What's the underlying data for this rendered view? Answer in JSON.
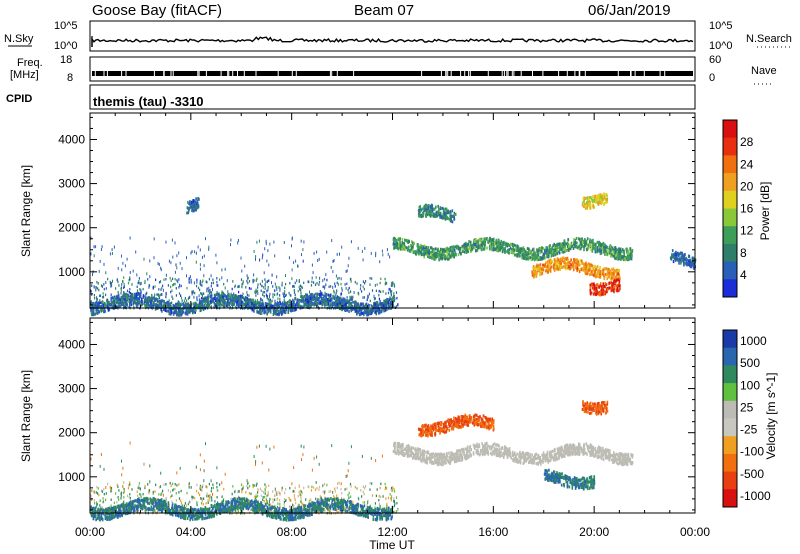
{
  "header": {
    "station": "Goose Bay (fitACF)",
    "beam": "Beam 07",
    "date": "06/Jan/2019"
  },
  "nsky_panel": {
    "left_label": "N.Sky",
    "left_ticks": [
      "10^5",
      "10^0"
    ],
    "right_label": "N.Search",
    "right_ticks": [
      "10^5",
      "10^0"
    ]
  },
  "freq_panel": {
    "left_label_1": "Freq.",
    "left_label_2": "[MHz]",
    "left_ticks": [
      "18",
      "8"
    ],
    "right_label": "Nave",
    "right_ticks": [
      "60",
      "0"
    ]
  },
  "cpid_panel": {
    "label": "CPID",
    "value": "themis (tau) -3310"
  },
  "colors": {
    "power_scale": [
      "#1a2dd8",
      "#2a5fb8",
      "#2f7e6a",
      "#3d9e5a",
      "#8ac83a",
      "#e0d020",
      "#f0a020",
      "#f07010",
      "#e83010",
      "#d81010"
    ],
    "velocity_scale": [
      "#1a3aa8",
      "#2a66b0",
      "#2e8a5e",
      "#60c040",
      "#bcbcb4",
      "#c8c8c0",
      "#f0a020",
      "#f07010",
      "#e84010",
      "#d81010"
    ]
  },
  "chart_data": [
    {
      "type": "heatmap",
      "panel": "power",
      "xlabel": "",
      "ylabel": "Slant Range [km]",
      "ylim": [
        180,
        4600
      ],
      "y_ticks": [
        "1000",
        "2000",
        "3000",
        "4000"
      ],
      "colorbar_label": "Power [dB]",
      "colorbar_ticks": [
        "4",
        "8",
        "12",
        "16",
        "20",
        "24",
        "28"
      ],
      "colorbar_range": [
        0,
        32
      ],
      "features": [
        {
          "t_start": 12.0,
          "t_end": 21.5,
          "range_km": 1550,
          "value_db": 10
        },
        {
          "t_start": 17.5,
          "t_end": 21.0,
          "range_km": 1100,
          "value_db": 22
        },
        {
          "t_start": 19.8,
          "t_end": 21.0,
          "range_km": 750,
          "value_db": 28
        },
        {
          "t_start": 19.5,
          "t_end": 20.5,
          "range_km": 2700,
          "value_db": 18
        },
        {
          "t_start": 13.0,
          "t_end": 14.5,
          "range_km": 2300,
          "value_db": 8
        },
        {
          "t_start": 0.0,
          "t_end": 12.0,
          "range_km": 300,
          "value_db": 6
        },
        {
          "t_start": 3.8,
          "t_end": 4.3,
          "range_km": 2500,
          "value_db": 6
        },
        {
          "t_start": 23.0,
          "t_end": 24.0,
          "range_km": 1300,
          "value_db": 6
        }
      ]
    },
    {
      "type": "heatmap",
      "panel": "velocity",
      "xlabel": "Time UT",
      "ylabel": "Slant Range [km]",
      "ylim": [
        180,
        4600
      ],
      "y_ticks": [
        "1000",
        "2000",
        "3000",
        "4000"
      ],
      "x_ticks": [
        "00:00",
        "04:00",
        "08:00",
        "12:00",
        "16:00",
        "20:00",
        "00:00"
      ],
      "xlim": [
        0,
        24
      ],
      "colorbar_label": "Velocity [m s^-1]",
      "colorbar_ticks": [
        "1000",
        "500",
        "100",
        "25",
        "-25",
        "-100",
        "-500",
        "-1000"
      ],
      "features": [
        {
          "t_start": 12.0,
          "t_end": 21.5,
          "range_km": 1550,
          "velocity_ms": 0
        },
        {
          "t_start": 13.0,
          "t_end": 16.0,
          "range_km": 2200,
          "velocity_ms": -500
        },
        {
          "t_start": 19.5,
          "t_end": 20.5,
          "range_km": 2700,
          "velocity_ms": -500
        },
        {
          "t_start": 18.0,
          "t_end": 20.0,
          "range_km": 1000,
          "velocity_ms": 100
        },
        {
          "t_start": 0.0,
          "t_end": 12.0,
          "range_km": 300,
          "velocity_ms": 100
        }
      ]
    }
  ]
}
